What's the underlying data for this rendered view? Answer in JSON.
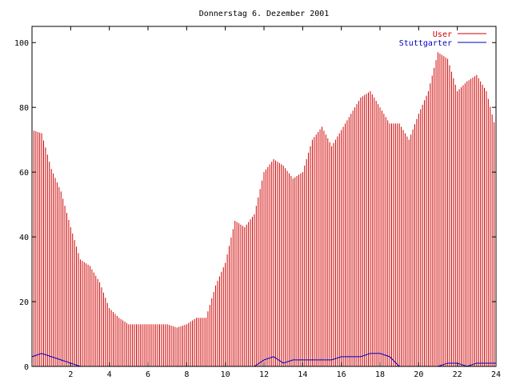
{
  "chart_data": {
    "type": "bar",
    "title": "Donnerstag 6. Dezember 2001",
    "xlabel": "",
    "ylabel": "",
    "xlim": [
      0,
      24
    ],
    "ylim": [
      0,
      105
    ],
    "grid": false,
    "legend_position": "top-right",
    "x_ticks": [
      "2",
      "4",
      "6",
      "8",
      "10",
      "12",
      "14",
      "16",
      "18",
      "20",
      "22",
      "24"
    ],
    "y_ticks": [
      "0",
      "20",
      "40",
      "60",
      "80",
      "100"
    ],
    "series": [
      {
        "name": "User",
        "color": "#d00000",
        "style": "impulses",
        "x": [
          0.0,
          0.5,
          1.0,
          1.5,
          2.0,
          2.5,
          3.0,
          3.5,
          4.0,
          4.5,
          5.0,
          5.5,
          6.0,
          6.5,
          7.0,
          7.5,
          8.0,
          8.5,
          9.0,
          9.5,
          10.0,
          10.5,
          11.0,
          11.5,
          12.0,
          12.5,
          13.0,
          13.5,
          14.0,
          14.5,
          15.0,
          15.5,
          16.0,
          16.5,
          17.0,
          17.5,
          18.0,
          18.5,
          19.0,
          19.5,
          20.0,
          20.5,
          21.0,
          21.5,
          22.0,
          22.5,
          23.0,
          23.5,
          24.0
        ],
        "values": [
          73,
          72,
          61,
          54,
          43,
          33,
          31,
          26,
          18,
          15,
          13,
          13,
          13,
          13,
          13,
          12,
          13,
          15,
          15,
          25,
          32,
          45,
          43,
          47,
          60,
          64,
          62,
          58,
          60,
          70,
          74,
          68,
          73,
          78,
          83,
          85,
          80,
          75,
          75,
          70,
          78,
          85,
          97,
          95,
          85,
          88,
          90,
          85,
          73
        ]
      },
      {
        "name": "Stuttgarter",
        "color": "#0000c0",
        "style": "lines",
        "x": [
          0.0,
          0.5,
          1.0,
          1.5,
          2.0,
          2.5,
          3.0,
          3.5,
          4.0,
          4.5,
          5.0,
          5.5,
          6.0,
          6.5,
          7.0,
          7.5,
          8.0,
          8.5,
          9.0,
          9.5,
          10.0,
          10.5,
          11.0,
          11.5,
          12.0,
          12.5,
          13.0,
          13.5,
          14.0,
          14.5,
          15.0,
          15.5,
          16.0,
          16.5,
          17.0,
          17.5,
          18.0,
          18.5,
          19.0,
          19.5,
          20.0,
          20.5,
          21.0,
          21.5,
          22.0,
          22.5,
          23.0,
          23.5,
          24.0
        ],
        "values": [
          3,
          4,
          3,
          2,
          1,
          0,
          0,
          0,
          0,
          0,
          0,
          0,
          0,
          0,
          0,
          0,
          0,
          0,
          0,
          0,
          0,
          0,
          0,
          0,
          2,
          3,
          1,
          2,
          2,
          2,
          2,
          2,
          3,
          3,
          3,
          4,
          4,
          3,
          0,
          0,
          0,
          0,
          0,
          1,
          1,
          0,
          1,
          1,
          1
        ]
      }
    ]
  }
}
